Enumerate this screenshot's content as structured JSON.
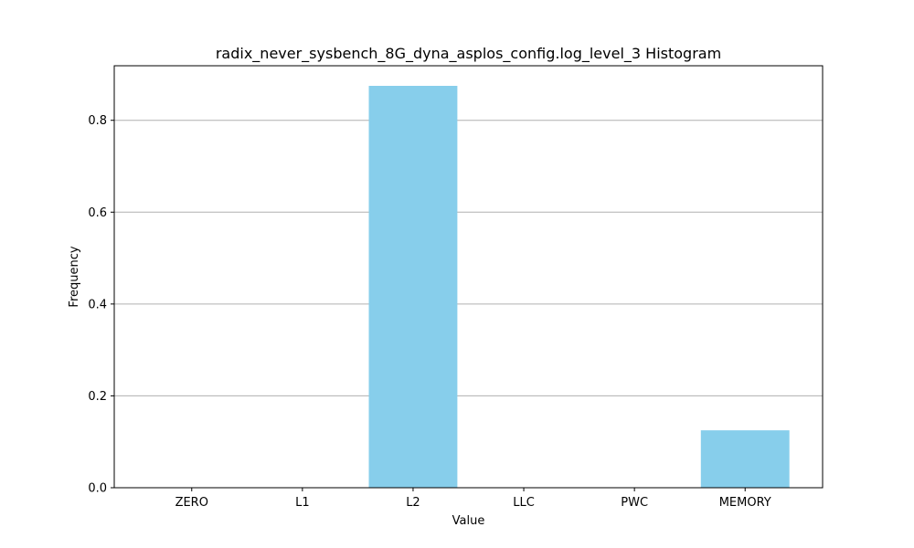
{
  "chart_data": {
    "type": "bar",
    "title": "radix_never_sysbench_8G_dyna_asplos_config.log_level_3 Histogram",
    "xlabel": "Value",
    "ylabel": "Frequency",
    "categories": [
      "ZERO",
      "L1",
      "L2",
      "LLC",
      "PWC",
      "MEMORY"
    ],
    "values": [
      0,
      0,
      0.875,
      0,
      0,
      0.125
    ],
    "ylim": [
      0,
      0.91875
    ],
    "yticks": [
      0.0,
      0.2,
      0.4,
      0.6,
      0.8
    ],
    "ytick_labels": [
      "0.0",
      "0.2",
      "0.4",
      "0.6",
      "0.8"
    ],
    "grid": "y",
    "bar_color": "#87ceeb",
    "grid_color": "#b0b0b0"
  }
}
